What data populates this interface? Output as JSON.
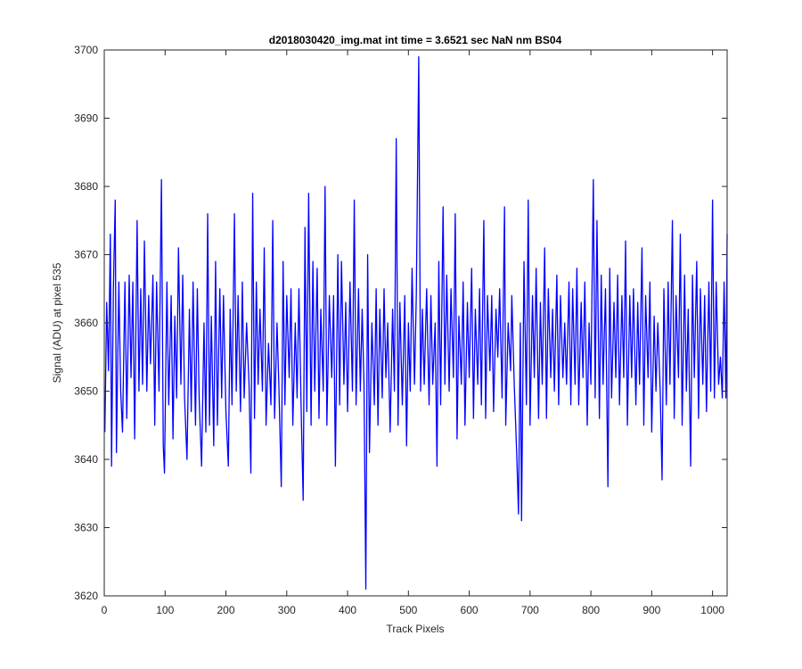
{
  "chart_data": {
    "type": "line",
    "title": "d2018030420_img.mat int time = 3.6521 sec  NaN nm BS04",
    "xlabel": "Track Pixels",
    "ylabel": "Signal (ADU) at pixel 535",
    "xlim": [
      0,
      1024
    ],
    "ylim": [
      3620,
      3700
    ],
    "xticks": [
      0,
      100,
      200,
      300,
      400,
      500,
      600,
      700,
      800,
      900,
      1000
    ],
    "yticks": [
      3620,
      3630,
      3640,
      3650,
      3660,
      3670,
      3680,
      3690,
      3700
    ],
    "x_tick_labels": [
      "0",
      "100",
      "200",
      "300",
      "400",
      "500",
      "600",
      "700",
      "800",
      "900",
      "1000"
    ],
    "y_tick_labels": [
      "3620",
      "3630",
      "3640",
      "3650",
      "3660",
      "3670",
      "3680",
      "3690",
      "3700"
    ],
    "grid": false,
    "series": [
      {
        "color": "#0000ff",
        "x_start": 1,
        "x_step": 1,
        "values_by_x": {
          "1": 3644,
          "4": 3663,
          "7": 3653,
          "10": 3673,
          "12": 3639,
          "15": 3665,
          "18": 3678,
          "20": 3641,
          "24": 3666,
          "27": 3650,
          "30": 3644,
          "34": 3666,
          "37": 3646,
          "41": 3667,
          "44": 3652,
          "47": 3666,
          "50": 3643,
          "54": 3675,
          "57": 3650,
          "60": 3665,
          "63": 3651,
          "66": 3672,
          "70": 3650,
          "73": 3664,
          "76": 3654,
          "80": 3667,
          "83": 3645,
          "86": 3666,
          "90": 3650,
          "94": 3681,
          "97": 3642,
          "99": 3638,
          "103": 3666,
          "106": 3648,
          "110": 3664,
          "113": 3643,
          "116": 3661,
          "119": 3649,
          "122": 3671,
          "126": 3651,
          "129": 3667,
          "132": 3649,
          "136": 3640,
          "140": 3662,
          "143": 3647,
          "146": 3666,
          "150": 3645,
          "153": 3665,
          "156": 3649,
          "160": 3639,
          "164": 3660,
          "167": 3644,
          "170": 3676,
          "173": 3645,
          "176": 3661,
          "180": 3642,
          "183": 3669,
          "186": 3645,
          "190": 3665,
          "193": 3649,
          "196": 3664,
          "200": 3647,
          "204": 3639,
          "207": 3662,
          "210": 3648,
          "214": 3676,
          "217": 3650,
          "220": 3664,
          "224": 3647,
          "227": 3666,
          "230": 3649,
          "234": 3660,
          "238": 3651,
          "241": 3638,
          "244": 3679,
          "247": 3646,
          "250": 3666,
          "253": 3651,
          "256": 3662,
          "260": 3650,
          "263": 3671,
          "266": 3645,
          "270": 3657,
          "274": 3648,
          "277": 3675,
          "280": 3646,
          "284": 3660,
          "287": 3651,
          "291": 3636,
          "294": 3669,
          "297": 3648,
          "300": 3664,
          "304": 3652,
          "307": 3665,
          "310": 3645,
          "314": 3660,
          "317": 3649,
          "320": 3665,
          "324": 3646,
          "327": 3634,
          "330": 3674,
          "333": 3647,
          "336": 3679,
          "340": 3645,
          "343": 3669,
          "346": 3650,
          "350": 3668,
          "353": 3646,
          "356": 3662,
          "360": 3650,
          "363": 3680,
          "366": 3645,
          "370": 3664,
          "374": 3652,
          "377": 3664,
          "380": 3639,
          "384": 3670,
          "387": 3648,
          "390": 3669,
          "394": 3651,
          "397": 3663,
          "400": 3647,
          "404": 3666,
          "408": 3650,
          "411": 3678,
          "414": 3648,
          "418": 3665,
          "421": 3650,
          "424": 3662,
          "427": 3651,
          "430": 3621,
          "433": 3670,
          "436": 3641,
          "440": 3660,
          "444": 3648,
          "447": 3665,
          "450": 3645,
          "453": 3662,
          "457": 3649,
          "460": 3665,
          "463": 3652,
          "466": 3660,
          "470": 3644,
          "474": 3662,
          "477": 3650,
          "480": 3687,
          "483": 3645,
          "486": 3663,
          "490": 3648,
          "494": 3664,
          "497": 3642,
          "500": 3660,
          "503": 3650,
          "506": 3668,
          "510": 3651,
          "513": 3664,
          "517": 3699,
          "520": 3650,
          "523": 3662,
          "526": 3651,
          "530": 3665,
          "534": 3648,
          "537": 3664,
          "540": 3651,
          "544": 3660,
          "547": 3639,
          "550": 3669,
          "553": 3648,
          "557": 3677,
          "560": 3651,
          "563": 3667,
          "567": 3650,
          "570": 3665,
          "574": 3652,
          "577": 3676,
          "580": 3643,
          "583": 3661,
          "587": 3651,
          "590": 3666,
          "593": 3645,
          "597": 3663,
          "600": 3652,
          "604": 3668,
          "607": 3646,
          "610": 3662,
          "614": 3651,
          "617": 3665,
          "620": 3648,
          "624": 3675,
          "627": 3646,
          "630": 3664,
          "634": 3653,
          "637": 3664,
          "640": 3647,
          "644": 3662,
          "647": 3655,
          "650": 3665,
          "654": 3649,
          "658": 3677,
          "660": 3645,
          "664": 3660,
          "668": 3653,
          "670": 3664,
          "674": 3651,
          "678": 3641,
          "681": 3632,
          "684": 3660,
          "686": 3631,
          "690": 3669,
          "694": 3648,
          "697": 3678,
          "700": 3645,
          "704": 3664,
          "707": 3652,
          "710": 3668,
          "714": 3646,
          "717": 3663,
          "720": 3651,
          "724": 3671,
          "727": 3646,
          "730": 3665,
          "734": 3652,
          "737": 3662,
          "740": 3650,
          "744": 3667,
          "747": 3648,
          "750": 3664,
          "754": 3652,
          "757": 3660,
          "760": 3651,
          "764": 3666,
          "767": 3648,
          "770": 3665,
          "774": 3651,
          "777": 3668,
          "780": 3648,
          "784": 3663,
          "787": 3652,
          "790": 3666,
          "794": 3645,
          "797": 3660,
          "800": 3651,
          "804": 3681,
          "807": 3649,
          "810": 3675,
          "814": 3646,
          "817": 3667,
          "820": 3651,
          "824": 3665,
          "828": 3636,
          "831": 3668,
          "834": 3649,
          "838": 3663,
          "841": 3652,
          "844": 3667,
          "847": 3648,
          "851": 3664,
          "854": 3652,
          "857": 3672,
          "860": 3645,
          "864": 3664,
          "867": 3652,
          "870": 3665,
          "874": 3648,
          "877": 3663,
          "880": 3651,
          "884": 3671,
          "887": 3645,
          "890": 3664,
          "894": 3652,
          "897": 3666,
          "900": 3644,
          "904": 3661,
          "907": 3650,
          "910": 3660,
          "914": 3650,
          "917": 3637,
          "920": 3665,
          "924": 3648,
          "927": 3666,
          "930": 3651,
          "934": 3675,
          "937": 3646,
          "940": 3664,
          "944": 3652,
          "947": 3673,
          "950": 3645,
          "954": 3667,
          "957": 3650,
          "960": 3662,
          "964": 3639,
          "967": 3667,
          "970": 3652,
          "974": 3669,
          "977": 3646,
          "980": 3665,
          "984": 3651,
          "987": 3664,
          "990": 3647,
          "994": 3666,
          "997": 3650,
          "1000": 3678,
          "1003": 3649,
          "1006": 3666,
          "1010": 3651,
          "1013": 3655,
          "1016": 3649,
          "1019": 3666,
          "1022": 3649,
          "1024": 3673
        }
      }
    ]
  }
}
